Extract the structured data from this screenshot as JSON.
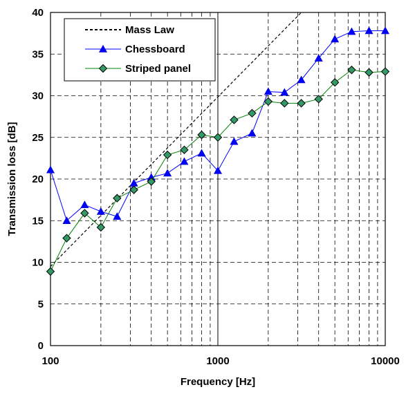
{
  "chart_data": {
    "type": "line",
    "xlabel": "Frequency [Hz]",
    "ylabel": "Transmission loss [dB]",
    "xscale": "log",
    "xlim": [
      100,
      10000
    ],
    "ylim": [
      0,
      40
    ],
    "x_ticks": [
      100,
      1000,
      10000
    ],
    "x_tick_labels": [
      "100",
      "1000",
      "10000"
    ],
    "y_ticks": [
      0,
      5,
      10,
      15,
      20,
      25,
      30,
      35,
      40
    ],
    "y_tick_labels": [
      "0",
      "5",
      "10",
      "15",
      "20",
      "25",
      "30",
      "35",
      "40"
    ],
    "grid": true,
    "legend_position": "top-left",
    "series": [
      {
        "name": "Mass Law",
        "style": "dashed",
        "color": "#000000",
        "marker": "none",
        "x": [
          100,
          3150
        ],
        "y": [
          9.5,
          40
        ]
      },
      {
        "name": "Chessboard",
        "style": "solid",
        "color": "#0000ff",
        "marker": "triangle",
        "marker_color": "#0000ff",
        "x": [
          100,
          125,
          160,
          200,
          250,
          315,
          400,
          500,
          630,
          800,
          1000,
          1250,
          1600,
          2000,
          2500,
          3150,
          4000,
          5000,
          6300,
          8000,
          10000
        ],
        "y": [
          21.1,
          15.0,
          16.9,
          16.1,
          15.5,
          19.5,
          20.2,
          20.7,
          22.1,
          23.1,
          21.0,
          24.5,
          25.5,
          30.5,
          30.4,
          31.9,
          34.5,
          36.8,
          37.7,
          37.8,
          37.8
        ]
      },
      {
        "name": "Striped panel",
        "style": "solid",
        "color": "#008000",
        "marker": "diamond",
        "marker_color": "#339966",
        "x": [
          100,
          125,
          160,
          200,
          250,
          315,
          400,
          500,
          630,
          800,
          1000,
          1250,
          1600,
          2000,
          2500,
          3150,
          4000,
          5000,
          6300,
          8000,
          10000
        ],
        "y": [
          8.9,
          12.9,
          15.9,
          14.2,
          17.7,
          18.7,
          19.7,
          22.9,
          23.5,
          25.3,
          25.0,
          27.1,
          27.9,
          29.3,
          29.1,
          29.1,
          29.6,
          31.6,
          33.1,
          32.8,
          32.9
        ]
      }
    ]
  }
}
